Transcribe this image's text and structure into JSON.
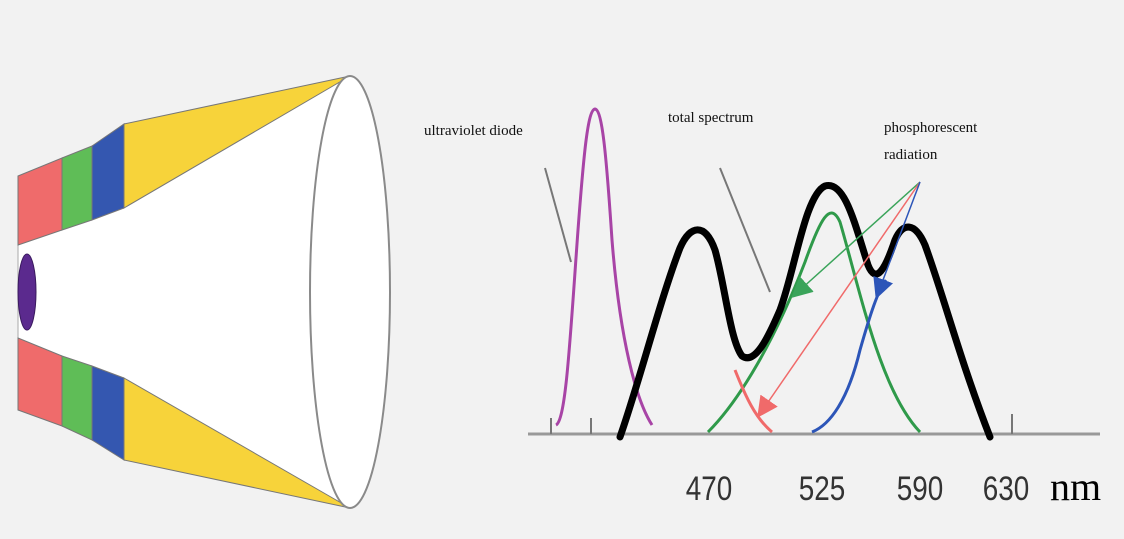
{
  "labels": {
    "ultraviolet": "ultraviolet diode",
    "total": "total spectrum",
    "phosphor_line1": "phosphorescent",
    "phosphor_line2": "radiation"
  },
  "axis": {
    "ticks": [
      "470",
      "525",
      "590",
      "630"
    ],
    "unit": "nm"
  },
  "colors": {
    "red_phosphor": "#ef6b6b",
    "green_phosphor": "#4fb34a",
    "blue_phosphor": "#3457b0",
    "yellow_cone": "#f7d33a",
    "uv_chip": "#5b2a8e",
    "uv_curve": "#a844a6",
    "total_curve": "#000000",
    "arrow_green": "#3aa45a",
    "arrow_red": "#f06a6a",
    "arrow_blue": "#2c55b8"
  }
}
